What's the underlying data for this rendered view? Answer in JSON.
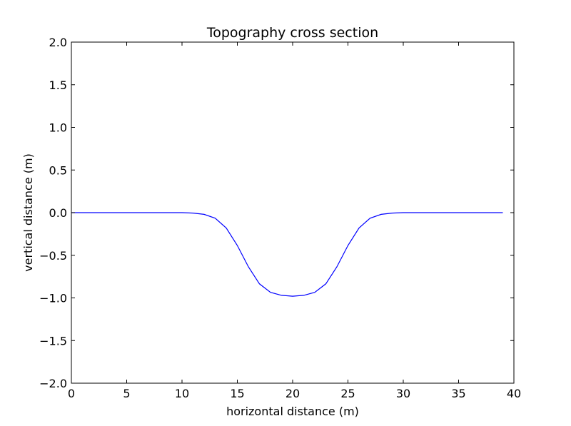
{
  "chart_data": {
    "type": "line",
    "title": "Topography cross section",
    "xlabel": "horizontal distance (m)",
    "ylabel": "vertical distance (m)",
    "xlim": [
      0,
      40
    ],
    "ylim": [
      -2.0,
      2.0
    ],
    "grid": false,
    "legend": "none",
    "xticks": [
      "0",
      "5",
      "10",
      "15",
      "20",
      "25",
      "30",
      "35",
      "40"
    ],
    "yticks": [
      "2.0",
      "1.5",
      "1.0",
      "0.5",
      "0.0",
      "−0.5",
      "−1.0",
      "−1.5",
      "−2.0"
    ],
    "line_color": "#0000ff",
    "series": [
      {
        "x": [
          0,
          1,
          2,
          3,
          4,
          5,
          6,
          7,
          8,
          9,
          10,
          11,
          12,
          13,
          14,
          15,
          16,
          17,
          18,
          19,
          20,
          21,
          22,
          23,
          24,
          25,
          26,
          27,
          28,
          29,
          30,
          31,
          32,
          33,
          34,
          35,
          36,
          37,
          38,
          39
        ],
        "values": [
          0,
          0,
          0,
          0,
          0,
          0,
          0,
          0,
          0,
          0,
          0,
          -0.005,
          -0.02,
          -0.065,
          -0.18,
          -0.385,
          -0.635,
          -0.835,
          -0.935,
          -0.97,
          -0.98,
          -0.97,
          -0.935,
          -0.835,
          -0.635,
          -0.385,
          -0.18,
          -0.065,
          -0.02,
          -0.005,
          0,
          0,
          0,
          0,
          0,
          0,
          0,
          0,
          0,
          0
        ]
      }
    ]
  }
}
